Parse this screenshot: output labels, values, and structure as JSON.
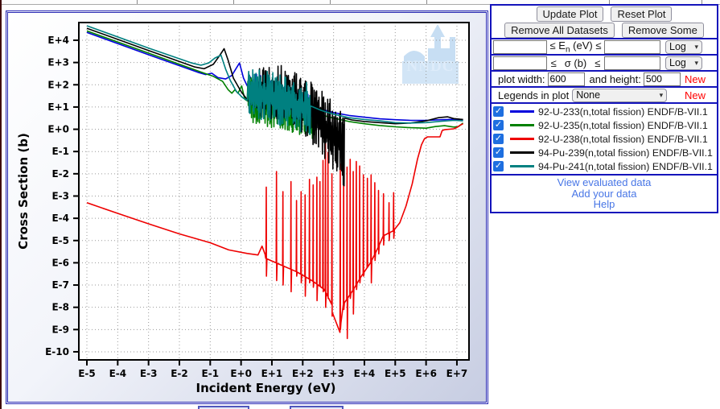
{
  "controls": {
    "buttons_row1": [
      {
        "name": "update-plot-button",
        "label": "Update Plot"
      },
      {
        "name": "reset-plot-button",
        "label": "Reset Plot"
      }
    ],
    "buttons_row2": [
      {
        "name": "remove-all-datasets-button",
        "label": "Remove All Datasets"
      },
      {
        "name": "remove-some-button",
        "label": "Remove Some"
      }
    ],
    "en_row": {
      "pre": "≤ E",
      "sub": "n",
      "post": " (eV) ≤",
      "input1": "",
      "input2": "",
      "scale": "Log"
    },
    "sigma_row": {
      "pre": "≤",
      "mid": "σ (b)",
      "post": "≤",
      "input1": "",
      "input2": "",
      "scale": "Log"
    },
    "size_row": {
      "label1": "plot width:",
      "width": "600",
      "label2": "and height:",
      "height": "500",
      "new_label": "New"
    },
    "legend_row": {
      "label": "Legends in plot",
      "value": "None",
      "new_label": "New"
    },
    "links": [
      "View evaluated data",
      "Add your data",
      "Help"
    ]
  },
  "chart_data": {
    "type": "line",
    "x_scale": "log",
    "y_scale": "log",
    "xlabel": "Incident Energy (eV)",
    "ylabel": "Cross Section (b)",
    "x_ticks": [
      "E-5",
      "E-4",
      "E-3",
      "E-2",
      "E-1",
      "E+0",
      "E+1",
      "E+2",
      "E+3",
      "E+4",
      "E+5",
      "E+6",
      "E+7"
    ],
    "y_ticks": [
      "E+4",
      "E+3",
      "E+2",
      "E+1",
      "E+0",
      "E-1",
      "E-2",
      "E-3",
      "E-4",
      "E-5",
      "E-6",
      "E-7",
      "E-8",
      "E-9",
      "E-10"
    ],
    "watermark": "NNDC",
    "grid": true,
    "legend_position": "none",
    "note": "log10 coordinates: points are [log10(E eV), log10(sigma b)]",
    "series": [
      {
        "label": "92-U-233(n,total fission) ENDF/B-VII.1",
        "color": "#0000dd",
        "checked": true,
        "seed": 3,
        "segments": [
          {
            "t": "pts",
            "p": [
              [
                -5,
                4.35
              ],
              [
                -3,
                3.35
              ],
              [
                -1.4,
                2.56
              ],
              [
                -1.15,
                2.46
              ],
              [
                -0.95,
                2.52
              ],
              [
                -0.75,
                2.32
              ],
              [
                -0.5,
                2.26
              ],
              [
                -0.3,
                2.42
              ],
              [
                -0.05,
                2.98
              ],
              [
                0.08,
                2.3
              ],
              [
                0.2,
                1.95
              ],
              [
                0.3,
                2.35
              ],
              [
                0.42,
                1.9
              ]
            ]
          },
          {
            "t": "noise",
            "from": 0.45,
            "to": 2.3,
            "top": [
              2.65,
              1.5
            ],
            "bot": [
              1.2,
              0.55
            ]
          },
          {
            "t": "pts",
            "p": [
              [
                2.3,
                1.05
              ],
              [
                2.6,
                0.9
              ],
              [
                3,
                0.75
              ],
              [
                3.5,
                0.62
              ],
              [
                4,
                0.54
              ],
              [
                4.5,
                0.47
              ],
              [
                5,
                0.43
              ],
              [
                5.5,
                0.4
              ],
              [
                6,
                0.4
              ],
              [
                6.5,
                0.43
              ],
              [
                7,
                0.45
              ],
              [
                7.2,
                0.43
              ]
            ]
          }
        ]
      },
      {
        "label": "92-U-235(n,total fission) ENDF/B-VII.1",
        "color": "#008000",
        "checked": true,
        "seed": 5,
        "segments": [
          {
            "t": "pts",
            "p": [
              [
                -5,
                4.42
              ],
              [
                -3,
                3.42
              ],
              [
                -1.2,
                2.52
              ],
              [
                -0.9,
                2.38
              ],
              [
                -0.6,
                2.15
              ],
              [
                -0.42,
                1.78
              ],
              [
                -0.3,
                1.62
              ],
              [
                -0.2,
                1.78
              ],
              [
                -0.1,
                1.62
              ],
              [
                0.02,
                1.95
              ],
              [
                0.12,
                1.35
              ],
              [
                0.2,
                1.28
              ]
            ]
          },
          {
            "t": "noise",
            "from": 0.22,
            "to": 2.4,
            "top": [
              2.45,
              1.35
            ],
            "bot": [
              0.35,
              -0.45
            ]
          },
          {
            "t": "pts",
            "p": [
              [
                2.4,
                0.72
              ],
              [
                3,
                0.5
              ],
              [
                3.5,
                0.35
              ],
              [
                4,
                0.25
              ],
              [
                4.5,
                0.17
              ],
              [
                5,
                0.11
              ],
              [
                5.5,
                0.07
              ],
              [
                6,
                0.05
              ],
              [
                6.3,
                0.12
              ],
              [
                6.6,
                0.16
              ],
              [
                6.9,
                0.1
              ],
              [
                7.05,
                0.12
              ],
              [
                7.2,
                0.28
              ]
            ]
          }
        ]
      },
      {
        "label": "92-U-238(n,total fission) ENDF/B-VII.1",
        "color": "#ee0000",
        "checked": true,
        "seed": 9,
        "segments": [
          {
            "t": "pts",
            "p": [
              [
                -5,
                -3.3
              ],
              [
                -4,
                -3.78
              ],
              [
                -3,
                -4.25
              ],
              [
                -2,
                -4.7
              ],
              [
                -1,
                -5.1
              ],
              [
                -0.4,
                -5.42
              ],
              [
                0.2,
                -5.58
              ],
              [
                0.55,
                -5.65
              ],
              [
                0.68,
                -5.25
              ],
              [
                0.78,
                -5.62
              ]
            ]
          },
          {
            "t": "spikes",
            "base": [
              [
                0.8,
                -5.8
              ],
              [
                1.3,
                -6.1
              ],
              [
                1.8,
                -6.4
              ],
              [
                2.3,
                -6.8
              ],
              [
                2.7,
                -7.2
              ],
              [
                2.95,
                -7.9
              ],
              [
                3.08,
                -10.3
              ],
              [
                3.12,
                -10.3
              ],
              [
                3.3,
                -7.9
              ],
              [
                3.6,
                -7.3
              ],
              [
                3.9,
                -6.6
              ],
              [
                4.2,
                -6.0
              ],
              [
                4.45,
                -5.3
              ],
              [
                4.6,
                -4.8
              ],
              [
                4.95,
                -4.55
              ]
            ],
            "sp": [
              [
                0.82,
                -2.6,
                -6.6
              ],
              [
                1.15,
                -1.9,
                -6.8
              ],
              [
                1.36,
                -2.8,
                -7.0
              ],
              [
                1.62,
                -2.35,
                -7.3
              ],
              [
                1.8,
                -3.2,
                -6.6
              ],
              [
                1.95,
                -2.8,
                -6.9
              ],
              [
                2.08,
                -2.95,
                -7.5
              ],
              [
                2.22,
                -2.25,
                -6.9
              ],
              [
                2.34,
                -2.5,
                -7.1
              ],
              [
                2.46,
                -2.15,
                -7.7
              ],
              [
                2.56,
                -2.35,
                -7.0
              ],
              [
                2.66,
                -1.4,
                -7.3
              ],
              [
                2.74,
                -0.55,
                -8.0
              ],
              [
                2.82,
                -1.05,
                -7.6
              ],
              [
                2.95,
                -2.0,
                -8.4
              ],
              [
                3.22,
                -1.55,
                -9.0
              ],
              [
                3.33,
                -1.25,
                -8.1
              ],
              [
                3.44,
                -1.7,
                -9.4
              ],
              [
                3.54,
                -1.35,
                -7.6
              ],
              [
                3.64,
                -1.9,
                -8.3
              ],
              [
                3.74,
                -1.45,
                -7.2
              ],
              [
                3.85,
                -1.65,
                -6.9
              ],
              [
                3.97,
                -2.05,
                -6.6
              ],
              [
                4.1,
                -2.2,
                -6.2
              ],
              [
                4.22,
                -2.05,
                -6.9
              ],
              [
                4.34,
                -2.4,
                -5.9
              ],
              [
                4.46,
                -2.75,
                -5.6
              ],
              [
                4.62,
                -2.9,
                -5.2
              ],
              [
                4.8,
                -3.3,
                -5.0
              ],
              [
                4.95,
                -2.85,
                -4.9
              ]
            ]
          },
          {
            "t": "pts",
            "p": [
              [
                4.95,
                -4.55
              ],
              [
                5.15,
                -4.2
              ],
              [
                5.35,
                -3.45
              ],
              [
                5.55,
                -2.45
              ],
              [
                5.72,
                -1.35
              ],
              [
                5.85,
                -0.7
              ],
              [
                5.95,
                -0.42
              ],
              [
                6.05,
                -0.34
              ],
              [
                6.45,
                -0.34
              ],
              [
                6.52,
                -0.06
              ],
              [
                6.6,
                -0.02
              ],
              [
                6.9,
                0.02
              ],
              [
                7.0,
                0.08
              ],
              [
                7.08,
                0.16
              ],
              [
                7.2,
                0.25
              ]
            ]
          }
        ]
      },
      {
        "label": "94-Pu-239(n,total fission) ENDF/B-VII.1",
        "color": "#000000",
        "checked": true,
        "seed": 13,
        "segments": [
          {
            "t": "pts",
            "p": [
              [
                -5,
                4.54
              ],
              [
                -3,
                3.54
              ],
              [
                -1.5,
                2.8
              ],
              [
                -1.2,
                2.72
              ],
              [
                -0.9,
                2.92
              ],
              [
                -0.7,
                3.3
              ],
              [
                -0.55,
                3.62
              ],
              [
                -0.42,
                3.1
              ],
              [
                -0.25,
                2.3
              ],
              [
                0,
                1.7
              ],
              [
                0.3,
                1.15
              ],
              [
                0.55,
                0.95
              ]
            ]
          },
          {
            "t": "noise",
            "from": 0.6,
            "to": 1.8,
            "top": [
              3.25,
              2.6
            ],
            "bot": [
              0.55,
              0.1
            ]
          },
          {
            "t": "noise",
            "from": 1.8,
            "to": 2.6,
            "top": [
              2.6,
              1.8
            ],
            "bot": [
              0.1,
              -1.1
            ]
          },
          {
            "t": "noise",
            "from": 2.6,
            "to": 3.35,
            "top": [
              1.8,
              0.85
            ],
            "bot": [
              -1.3,
              -2.6
            ]
          },
          {
            "t": "pts",
            "p": [
              [
                3.35,
                0.5
              ],
              [
                3.6,
                0.42
              ],
              [
                4,
                0.35
              ],
              [
                4.5,
                0.3
              ],
              [
                5,
                0.25
              ],
              [
                5.5,
                0.28
              ],
              [
                6,
                0.38
              ],
              [
                6.4,
                0.52
              ],
              [
                6.7,
                0.56
              ],
              [
                6.9,
                0.48
              ],
              [
                7.1,
                0.45
              ],
              [
                7.2,
                0.44
              ]
            ]
          }
        ]
      },
      {
        "label": "94-Pu-241(n,total fission) ENDF/B-VII.1",
        "color": "#008080",
        "checked": true,
        "seed": 17,
        "segments": [
          {
            "t": "pts",
            "p": [
              [
                -5,
                4.65
              ],
              [
                -3,
                3.65
              ],
              [
                -1.6,
                2.98
              ],
              [
                -1.3,
                2.88
              ],
              [
                -1.05,
                2.98
              ],
              [
                -0.85,
                3.2
              ],
              [
                -0.65,
                3.33
              ],
              [
                -0.5,
                2.7
              ],
              [
                -0.35,
                2.2
              ],
              [
                -0.15,
                1.7
              ],
              [
                0.05,
                1.42
              ],
              [
                0.2,
                1.3
              ]
            ]
          },
          {
            "t": "noise",
            "from": 0.25,
            "to": 2.25,
            "top": [
              2.95,
              2.05
            ],
            "bot": [
              0.55,
              -0.25
            ]
          },
          {
            "t": "pts",
            "p": [
              [
                2.25,
                1.05
              ],
              [
                2.6,
                0.85
              ],
              [
                3,
                0.68
              ],
              [
                3.5,
                0.52
              ],
              [
                4,
                0.44
              ],
              [
                4.5,
                0.38
              ],
              [
                5,
                0.3
              ],
              [
                5.5,
                0.28
              ],
              [
                6,
                0.3
              ],
              [
                6.5,
                0.36
              ],
              [
                6.9,
                0.4
              ],
              [
                7.2,
                0.38
              ]
            ]
          }
        ]
      }
    ]
  }
}
